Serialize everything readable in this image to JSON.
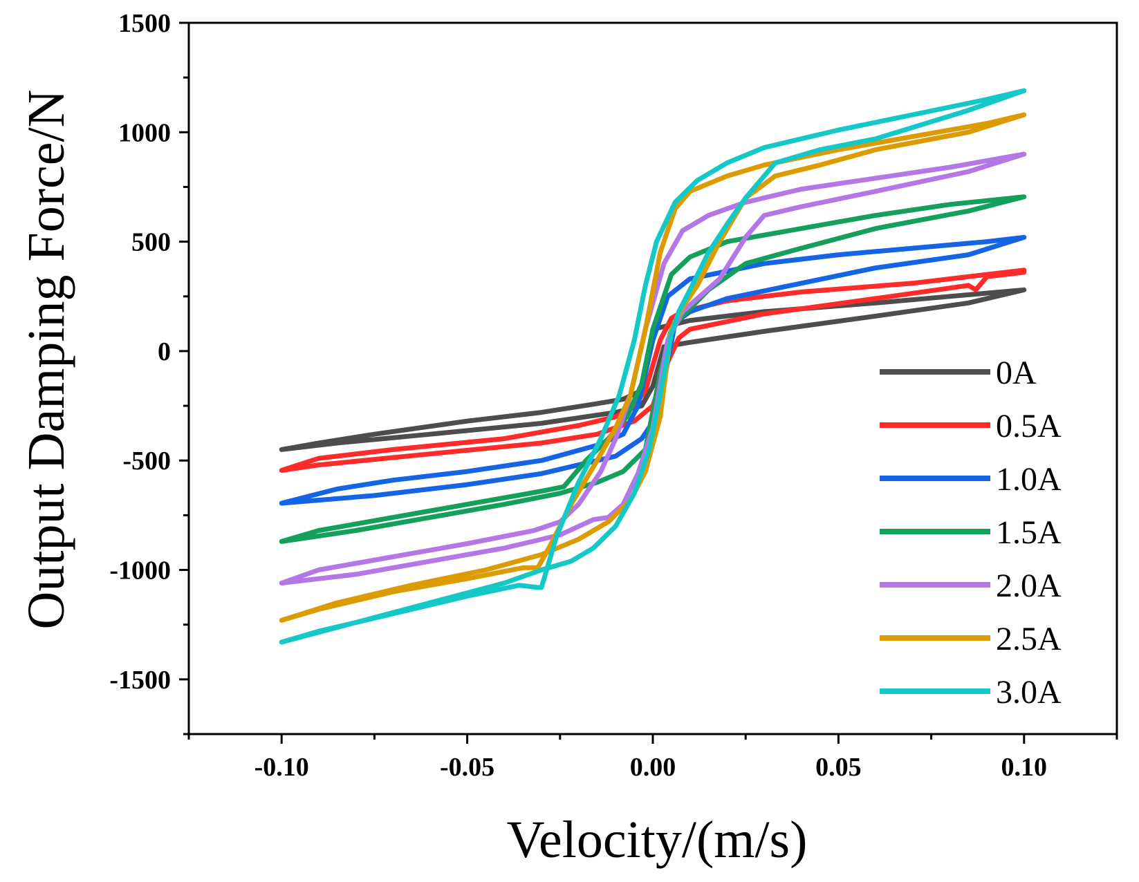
{
  "chart_data": {
    "type": "line",
    "title": "",
    "xlabel": "Velocity/(m/s)",
    "ylabel": "Output Damping Force/N",
    "xlim": [
      -0.125,
      0.125
    ],
    "ylim": [
      -1750,
      1500
    ],
    "xticks": [
      -0.1,
      -0.05,
      0.0,
      0.05,
      0.1
    ],
    "xtick_labels": [
      "-0.10",
      "-0.05",
      "0.00",
      "0.05",
      "0.10"
    ],
    "yticks": [
      1500,
      1000,
      500,
      0,
      -500,
      -1000,
      -1500
    ],
    "ytick_labels": [
      "1500",
      "1000",
      "500",
      "0",
      "-500",
      "-1000",
      "-1500"
    ],
    "grid": false,
    "legend_position": "bottom-right",
    "series": [
      {
        "name": "0A",
        "color": "#4d4d4d",
        "upper": {
          "x": [
            -0.1,
            -0.09,
            -0.075,
            -0.05,
            -0.03,
            -0.015,
            -0.008,
            -0.003,
            0.0,
            0.01,
            0.03,
            0.06,
            0.08,
            0.1
          ],
          "y": [
            -450,
            -420,
            -380,
            -320,
            -280,
            -240,
            -220,
            -180,
            100,
            140,
            180,
            220,
            250,
            280
          ]
        },
        "lower": {
          "x": [
            0.1,
            0.085,
            0.06,
            0.03,
            0.01,
            0.003,
            0.0,
            -0.003,
            -0.01,
            -0.03,
            -0.06,
            -0.085,
            -0.1
          ],
          "y": [
            280,
            220,
            160,
            90,
            40,
            20,
            -160,
            -250,
            -280,
            -330,
            -380,
            -420,
            -450
          ]
        }
      },
      {
        "name": "0.5A",
        "color": "#ff2a2a",
        "upper": {
          "x": [
            -0.1,
            -0.09,
            -0.07,
            -0.04,
            -0.02,
            -0.01,
            -0.005,
            -0.002,
            0.002,
            0.005,
            0.008,
            0.02,
            0.04,
            0.07,
            0.09,
            0.1
          ],
          "y": [
            -545,
            -490,
            -450,
            -400,
            -340,
            -300,
            -250,
            -180,
            50,
            150,
            180,
            230,
            270,
            310,
            350,
            370
          ]
        },
        "lower": {
          "x": [
            0.1,
            0.09,
            0.087,
            0.085,
            0.06,
            0.03,
            0.01,
            0.007,
            0.004,
            0.0,
            -0.005,
            -0.015,
            -0.03,
            -0.06,
            -0.09,
            -0.1
          ],
          "y": [
            360,
            340,
            280,
            300,
            240,
            170,
            100,
            60,
            -50,
            -250,
            -320,
            -380,
            -420,
            -470,
            -520,
            -545
          ]
        }
      },
      {
        "name": "1.0A",
        "color": "#1464e6",
        "upper": {
          "x": [
            -0.1,
            -0.085,
            -0.07,
            -0.05,
            -0.03,
            -0.015,
            -0.008,
            -0.004,
            0.0,
            0.004,
            0.01,
            0.03,
            0.05,
            0.07,
            0.09,
            0.1
          ],
          "y": [
            -695,
            -630,
            -590,
            -550,
            -500,
            -430,
            -380,
            -250,
            50,
            250,
            330,
            400,
            440,
            470,
            500,
            520
          ]
        },
        "lower": {
          "x": [
            0.1,
            0.085,
            0.06,
            0.04,
            0.02,
            0.01,
            0.006,
            0.004,
            0.001,
            -0.003,
            -0.01,
            -0.03,
            -0.05,
            -0.075,
            -0.1
          ],
          "y": [
            520,
            440,
            380,
            310,
            240,
            180,
            130,
            -50,
            -300,
            -400,
            -480,
            -560,
            -610,
            -660,
            -695
          ]
        }
      },
      {
        "name": "1.5A",
        "color": "#14a05a",
        "upper": {
          "x": [
            -0.1,
            -0.09,
            -0.07,
            -0.05,
            -0.03,
            -0.024,
            -0.018,
            -0.012,
            -0.007,
            -0.003,
            0.0,
            0.005,
            0.01,
            0.02,
            0.04,
            0.06,
            0.08,
            0.1
          ],
          "y": [
            -870,
            -820,
            -760,
            -700,
            -640,
            -620,
            -500,
            -400,
            -300,
            -150,
            100,
            350,
            430,
            500,
            560,
            620,
            670,
            705
          ]
        },
        "lower": {
          "x": [
            0.1,
            0.085,
            0.06,
            0.04,
            0.025,
            0.015,
            0.008,
            0.005,
            0.002,
            -0.002,
            -0.008,
            -0.015,
            -0.025,
            -0.04,
            -0.06,
            -0.08,
            -0.1
          ],
          "y": [
            705,
            640,
            560,
            470,
            400,
            280,
            160,
            100,
            -100,
            -450,
            -550,
            -600,
            -650,
            -700,
            -760,
            -820,
            -870
          ]
        }
      },
      {
        "name": "2.0A",
        "color": "#b478e6",
        "upper": {
          "x": [
            -0.1,
            -0.09,
            -0.07,
            -0.05,
            -0.032,
            -0.025,
            -0.02,
            -0.014,
            -0.01,
            -0.006,
            -0.002,
            0.003,
            0.008,
            0.015,
            0.025,
            0.04,
            0.06,
            0.08,
            0.1
          ],
          "y": [
            -1060,
            -1000,
            -940,
            -880,
            -820,
            -780,
            -700,
            -550,
            -400,
            -200,
            100,
            400,
            550,
            620,
            680,
            740,
            790,
            840,
            900
          ]
        },
        "lower": {
          "x": [
            0.1,
            0.085,
            0.06,
            0.04,
            0.03,
            0.025,
            0.018,
            0.012,
            0.008,
            0.004,
            0.0,
            -0.004,
            -0.008,
            -0.012,
            -0.016,
            -0.025,
            -0.04,
            -0.06,
            -0.08,
            -0.1
          ],
          "y": [
            900,
            820,
            730,
            660,
            620,
            520,
            330,
            240,
            180,
            50,
            -350,
            -560,
            -700,
            -760,
            -770,
            -840,
            -900,
            -960,
            -1020,
            -1060
          ]
        }
      },
      {
        "name": "2.5A",
        "color": "#dc9b00",
        "upper": {
          "x": [
            -0.1,
            -0.09,
            -0.07,
            -0.05,
            -0.035,
            -0.031,
            -0.028,
            -0.022,
            -0.015,
            -0.01,
            -0.006,
            -0.002,
            0.002,
            0.006,
            0.01,
            0.02,
            0.03,
            0.05,
            0.07,
            0.09,
            0.1
          ],
          "y": [
            -1230,
            -1180,
            -1100,
            -1040,
            -990,
            -990,
            -900,
            -700,
            -500,
            -350,
            -200,
            100,
            450,
            650,
            730,
            800,
            850,
            920,
            980,
            1040,
            1080
          ]
        },
        "lower": {
          "x": [
            0.1,
            0.085,
            0.06,
            0.045,
            0.033,
            0.025,
            0.018,
            0.012,
            0.008,
            0.005,
            0.002,
            -0.002,
            -0.006,
            -0.012,
            -0.02,
            -0.03,
            -0.045,
            -0.065,
            -0.085,
            -0.1
          ],
          "y": [
            1080,
            1000,
            920,
            850,
            800,
            700,
            500,
            300,
            200,
            100,
            -300,
            -550,
            -680,
            -780,
            -860,
            -930,
            -1000,
            -1070,
            -1150,
            -1230
          ]
        }
      },
      {
        "name": "3.0A",
        "color": "#14c8c8",
        "upper": {
          "x": [
            -0.1,
            -0.09,
            -0.07,
            -0.05,
            -0.036,
            -0.031,
            -0.03,
            -0.026,
            -0.02,
            -0.014,
            -0.009,
            -0.005,
            -0.002,
            0.001,
            0.006,
            0.012,
            0.02,
            0.03,
            0.05,
            0.07,
            0.09,
            0.1
          ],
          "y": [
            -1330,
            -1280,
            -1200,
            -1120,
            -1070,
            -1080,
            -1080,
            -850,
            -600,
            -400,
            -200,
            50,
            300,
            500,
            680,
            780,
            860,
            930,
            1010,
            1080,
            1150,
            1190
          ]
        },
        "lower": {
          "x": [
            0.1,
            0.085,
            0.06,
            0.045,
            0.033,
            0.025,
            0.02,
            0.015,
            0.01,
            0.007,
            0.005,
            0.002,
            -0.001,
            -0.005,
            -0.01,
            -0.016,
            -0.022,
            -0.03,
            -0.04,
            -0.06,
            -0.08,
            -0.1
          ],
          "y": [
            1190,
            1100,
            970,
            920,
            860,
            700,
            580,
            450,
            280,
            180,
            80,
            -200,
            -450,
            -650,
            -800,
            -900,
            -960,
            -1000,
            -1060,
            -1150,
            -1240,
            -1330
          ]
        }
      }
    ]
  }
}
